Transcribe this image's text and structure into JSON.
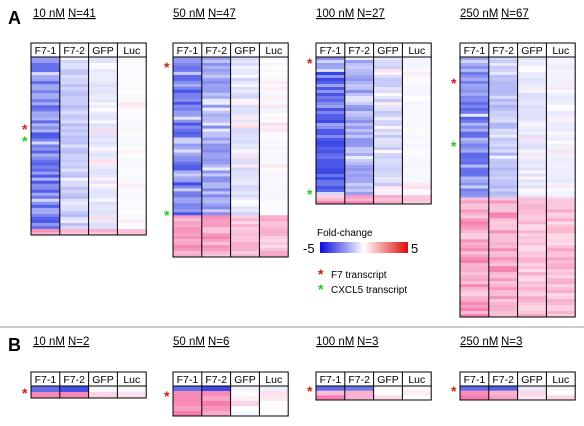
{
  "panels": [
    {
      "letter": "A",
      "blocks": [
        {
          "dose": "10 nM",
          "n_label": "N=41",
          "columns": [
            "F7-1",
            "F7-2",
            "GFP",
            "Luc"
          ],
          "star_red": true,
          "star_green": true
        },
        {
          "dose": "50 nM",
          "n_label": "N=47",
          "columns": [
            "F7-1",
            "F7-2",
            "GFP",
            "Luc"
          ],
          "star_red": true,
          "star_green": true
        },
        {
          "dose": "100 nM",
          "n_label": "N=27",
          "columns": [
            "F7-1",
            "F7-2",
            "GFP",
            "Luc"
          ],
          "star_red": true,
          "star_green": true
        },
        {
          "dose": "250 nM",
          "n_label": "N=67",
          "columns": [
            "F7-1",
            "F7-2",
            "GFP",
            "Luc"
          ],
          "star_red": true,
          "star_green": true
        }
      ]
    },
    {
      "letter": "B",
      "blocks": [
        {
          "dose": "10 nM",
          "n_label": "N=2",
          "columns": [
            "F7-1",
            "F7-2",
            "GFP",
            "Luc"
          ],
          "star_red": true
        },
        {
          "dose": "50 nM",
          "n_label": "N=6",
          "columns": [
            "F7-1",
            "F7-2",
            "GFP",
            "Luc"
          ],
          "star_red": true
        },
        {
          "dose": "100 nM",
          "n_label": "N=3",
          "columns": [
            "F7-1",
            "F7-2",
            "GFP",
            "Luc"
          ],
          "star_red": true
        },
        {
          "dose": "250 nM",
          "n_label": "N=3",
          "columns": [
            "F7-1",
            "F7-2",
            "GFP",
            "Luc"
          ],
          "star_red": true
        }
      ]
    }
  ],
  "legend": {
    "title": "Fold-change",
    "min_label": "-5",
    "max_label": "5",
    "low_color": "#1010e0",
    "mid_color": "#ffffff",
    "high_color": "#e01010",
    "red_star_label": "F7 transcript",
    "green_star_label": "CXCL5 transcript",
    "red_star_color": "#cc2020",
    "green_star_color": "#22cc22"
  }
}
